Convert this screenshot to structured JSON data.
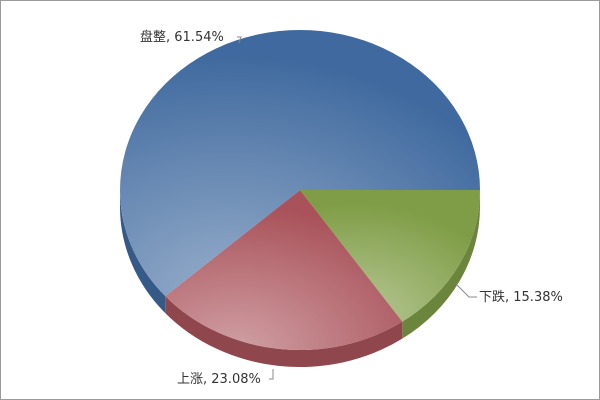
{
  "chart_data": {
    "type": "pie",
    "style": "3d",
    "start_angle_deg": 0,
    "direction": "clockwise",
    "slices": [
      {
        "label": "下跌",
        "value": 15.38,
        "display": "下跌, 15.38%",
        "color": "#7f9d46"
      },
      {
        "label": "上涨",
        "value": 23.08,
        "display": "上涨, 23.08%",
        "color": "#a9525a"
      },
      {
        "label": "盘整",
        "value": 61.54,
        "display": "盘整, 61.54%",
        "color": "#406a9f"
      }
    ],
    "legend": "none"
  }
}
